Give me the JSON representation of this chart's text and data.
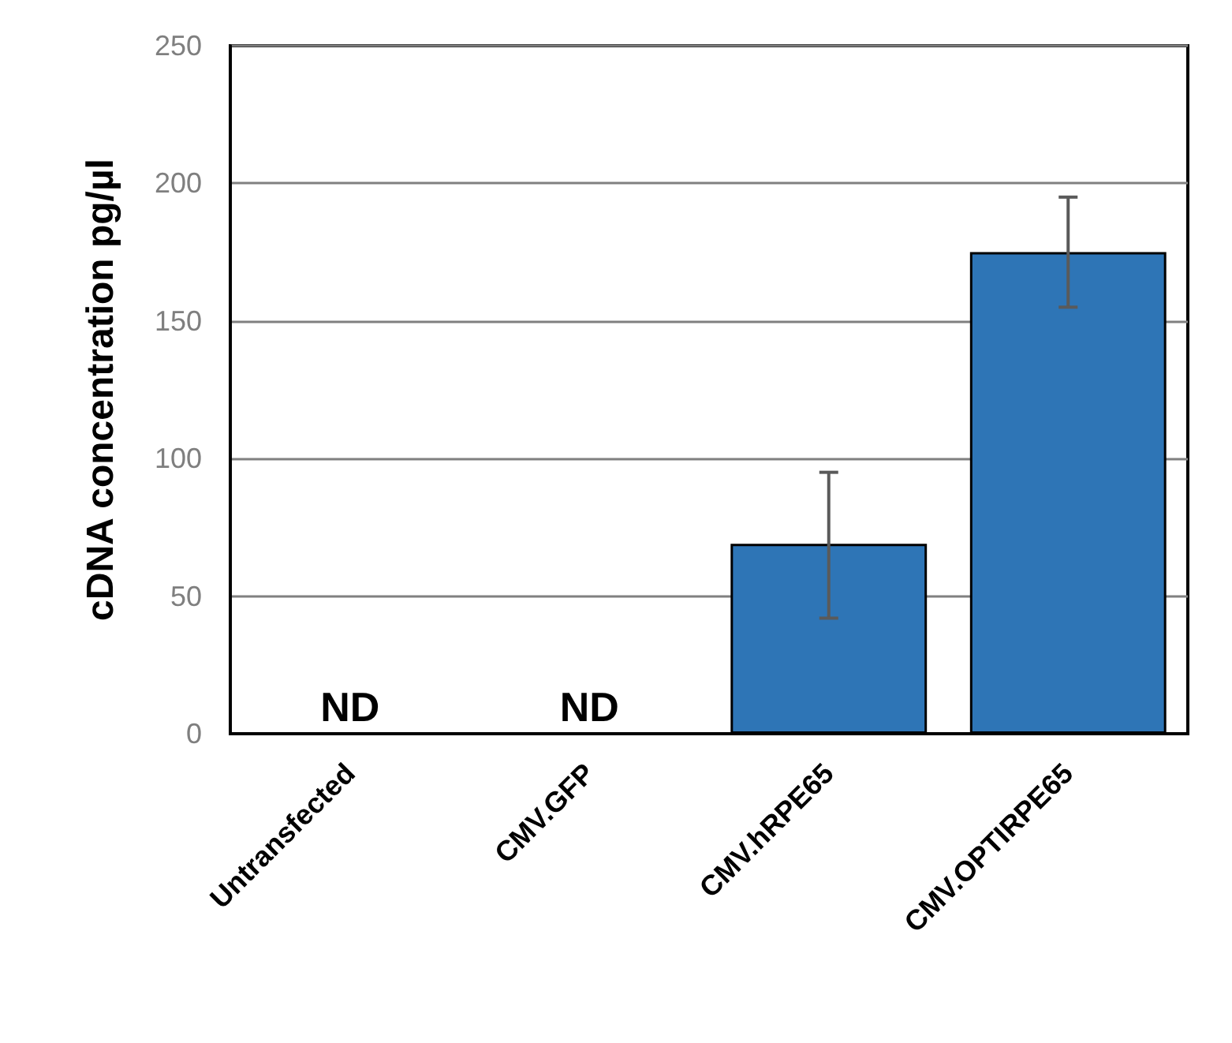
{
  "chart_data": {
    "type": "bar",
    "ylabel": "cDNA concentration pg/µl",
    "categories": [
      "Untransfected",
      "CMV.GFP",
      "CMV.hRPE65",
      "CMV.OPTIRPE65"
    ],
    "values": [
      null,
      null,
      69,
      175
    ],
    "errors": [
      null,
      null,
      [
        42,
        95
      ],
      [
        155,
        195
      ]
    ],
    "color": "#2e75b6",
    "ylim": [
      0,
      250
    ],
    "yticks": [
      0,
      50,
      100,
      150,
      200,
      250
    ],
    "grid": "y",
    "annotations": [
      "ND",
      "ND"
    ]
  }
}
